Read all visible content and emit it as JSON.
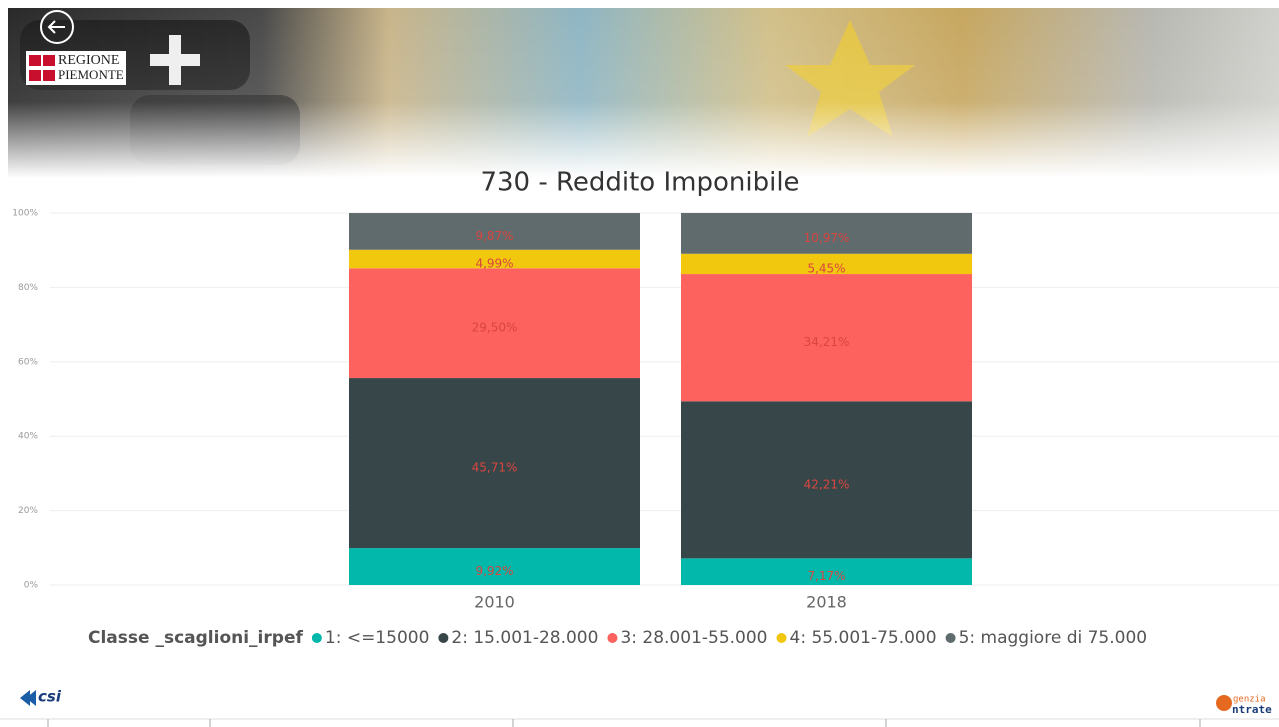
{
  "logos": {
    "regione": "REGIONE",
    "piemonte": "PIEMONTE",
    "csi": "csi",
    "agenzia": "genzia",
    "entrate": "ntrate"
  },
  "chart_data": {
    "type": "stacked_bar_100",
    "title": "730 - Reddito Imponibile",
    "categories": [
      "2010",
      "2018"
    ],
    "legend_title": "Classe _scaglioni_irpef",
    "ylim": [
      0,
      100
    ],
    "yticks": [
      {
        "value": 0,
        "label": "0%"
      },
      {
        "value": 20,
        "label": "20%"
      },
      {
        "value": 40,
        "label": "40%"
      },
      {
        "value": 60,
        "label": "60%"
      },
      {
        "value": 80,
        "label": "80%"
      },
      {
        "value": 100,
        "label": "100%"
      }
    ],
    "grid": true,
    "series": [
      {
        "name": "1: <=15000",
        "color": "#01B8AA",
        "values": [
          9.92,
          7.17
        ],
        "value_labels": [
          "9,92%",
          "7,17%"
        ]
      },
      {
        "name": "2: 15.001-28.000",
        "color": "#374649",
        "values": [
          45.71,
          42.21
        ],
        "value_labels": [
          "45,71%",
          "42,21%"
        ]
      },
      {
        "name": "3: 28.001-55.000",
        "color": "#FD625E",
        "values": [
          29.5,
          34.21
        ],
        "value_labels": [
          "29,50%",
          "34,21%"
        ]
      },
      {
        "name": "4: 55.001-75.000",
        "color": "#F2C80F",
        "values": [
          4.99,
          5.45
        ],
        "value_labels": [
          "4,99%",
          "5,45%"
        ]
      },
      {
        "name": "5: maggiore di 75.000",
        "color": "#5F6B6D",
        "values": [
          9.87,
          10.97
        ],
        "value_labels": [
          "9,87%",
          "10,97%"
        ]
      }
    ]
  }
}
